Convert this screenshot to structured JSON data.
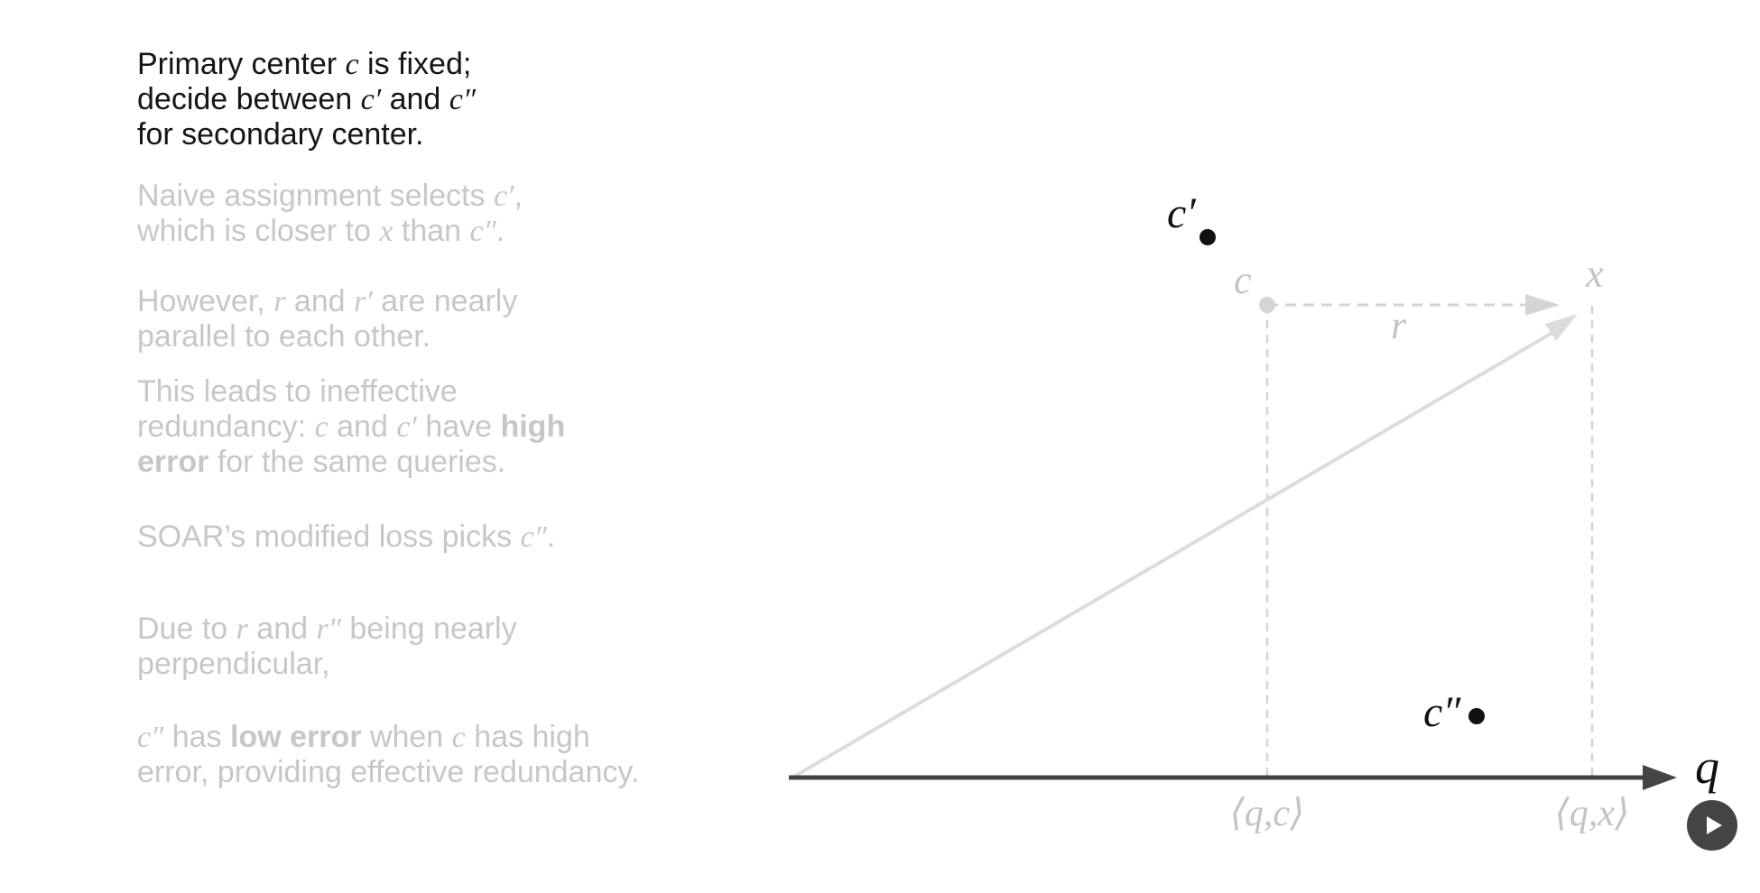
{
  "paragraphs": [
    {
      "id": "p1",
      "active": true,
      "lines": [
        [
          {
            "t": "Primary center "
          },
          {
            "t": "c",
            "m": true
          },
          {
            "t": " is fixed;"
          }
        ],
        [
          {
            "t": "decide between "
          },
          {
            "t": "c′",
            "m": true
          },
          {
            "t": " and "
          },
          {
            "t": "c″",
            "m": true
          }
        ],
        [
          {
            "t": "for secondary center."
          }
        ]
      ]
    },
    {
      "id": "p2",
      "active": false,
      "lines": [
        [
          {
            "t": "Naive assignment selects "
          },
          {
            "t": "c′",
            "m": true
          },
          {
            "t": ","
          }
        ],
        [
          {
            "t": "which is closer to "
          },
          {
            "t": "x",
            "m": true
          },
          {
            "t": " than "
          },
          {
            "t": "c″",
            "m": true
          },
          {
            "t": "."
          }
        ]
      ]
    },
    {
      "id": "p3",
      "active": false,
      "lines": [
        [
          {
            "t": "However, "
          },
          {
            "t": "r",
            "m": true
          },
          {
            "t": " and "
          },
          {
            "t": "r′",
            "m": true
          },
          {
            "t": " are nearly"
          }
        ],
        [
          {
            "t": "parallel to each other."
          }
        ]
      ]
    },
    {
      "id": "p4",
      "active": false,
      "lines": [
        [
          {
            "t": "This leads to ineffective"
          }
        ],
        [
          {
            "t": "redundancy: "
          },
          {
            "t": "c",
            "m": true
          },
          {
            "t": " and "
          },
          {
            "t": "c′",
            "m": true
          },
          {
            "t": " have "
          },
          {
            "t": "high",
            "b": true
          }
        ],
        [
          {
            "t": "error",
            "b": true
          },
          {
            "t": " for the same queries."
          }
        ]
      ]
    },
    {
      "id": "p5",
      "active": false,
      "lines": [
        [
          {
            "t": "SOAR’s modified loss picks "
          },
          {
            "t": "c″",
            "m": true
          },
          {
            "t": "."
          }
        ]
      ]
    },
    {
      "id": "p6",
      "active": false,
      "lines": [
        [
          {
            "t": "Due to "
          },
          {
            "t": "r",
            "m": true
          },
          {
            "t": " and "
          },
          {
            "t": "r″",
            "m": true
          },
          {
            "t": " being nearly"
          }
        ],
        [
          {
            "t": "perpendicular,"
          }
        ]
      ]
    },
    {
      "id": "p7",
      "active": false,
      "lines": [
        [
          {
            "t": "c″",
            "m": true
          },
          {
            "t": " has "
          },
          {
            "t": "low error",
            "b": true
          },
          {
            "t": " when "
          },
          {
            "t": "c",
            "m": true
          },
          {
            "t": " has high"
          }
        ],
        [
          {
            "t": "error, providing effective redundancy."
          }
        ]
      ]
    }
  ],
  "diagram": {
    "labels": {
      "c": "c",
      "c_prime": "c′",
      "c_double_prime": "c″",
      "x": "x",
      "r": "r",
      "q": "q",
      "proj_c": "⟨q,c⟩",
      "proj_x": "⟨q,x⟩"
    },
    "colors": {
      "faded": "#d4d4d4",
      "faded_text": "#c4c4c4",
      "active": "#111111",
      "axis": "#444444"
    }
  },
  "controls": {
    "play_icon": "play-icon"
  }
}
